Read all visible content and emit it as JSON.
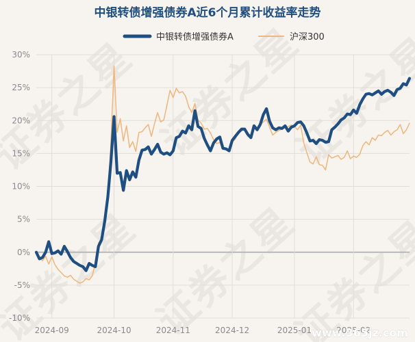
{
  "watermark": {
    "text": "证券之星",
    "url": "www.365jz.com"
  },
  "chart_data": {
    "type": "line",
    "title": "中银转债增强债券A近6个月累计收益率走势",
    "xlabel": "",
    "ylabel": "",
    "ylim": [
      -10,
      30
    ],
    "y_ticks": [
      -10,
      -5,
      0,
      5,
      10,
      15,
      20,
      25,
      30
    ],
    "y_tick_labels": [
      "-10%",
      "-5%",
      "0%",
      "5%",
      "10%",
      "15%",
      "20%",
      "25%",
      "30%"
    ],
    "x_tick_labels": [
      {
        "label": "2024-09",
        "x": 5
      },
      {
        "label": "2024-10",
        "x": 25
      },
      {
        "label": "2024-11",
        "x": 44
      },
      {
        "label": "2024-12",
        "x": 63
      },
      {
        "label": "2025-01",
        "x": 83
      },
      {
        "label": "2025-02",
        "x": 102
      }
    ],
    "legend_position": "top-center",
    "grid": true,
    "series": [
      {
        "name": "中银转债增强债券A",
        "color": "#1f4f82",
        "points": [
          [
            0,
            0.0
          ],
          [
            1,
            -1.0
          ],
          [
            2,
            -0.8
          ],
          [
            3,
            0.0
          ],
          [
            4,
            1.6
          ],
          [
            5,
            -0.2
          ],
          [
            6,
            -0.1
          ],
          [
            7,
            0.2
          ],
          [
            8,
            -0.3
          ],
          [
            9,
            0.9
          ],
          [
            10,
            0.1
          ],
          [
            11,
            -0.8
          ],
          [
            12,
            -1.4
          ],
          [
            13,
            -1.7
          ],
          [
            14,
            -2.0
          ],
          [
            15,
            -2.2
          ],
          [
            16,
            -2.8
          ],
          [
            17,
            -1.7
          ],
          [
            18,
            -2.0
          ],
          [
            19,
            -2.2
          ],
          [
            20,
            0.9
          ],
          [
            21,
            1.9
          ],
          [
            22,
            4.7
          ],
          [
            23,
            8.4
          ],
          [
            24,
            13.8
          ],
          [
            25,
            20.6
          ],
          [
            26,
            12.0
          ],
          [
            27,
            12.1
          ],
          [
            28,
            9.4
          ],
          [
            29,
            12.4
          ],
          [
            30,
            11.0
          ],
          [
            31,
            12.2
          ],
          [
            32,
            11.4
          ],
          [
            33,
            14.0
          ],
          [
            34,
            15.5
          ],
          [
            35,
            15.6
          ],
          [
            36,
            16.0
          ],
          [
            37,
            14.9
          ],
          [
            38,
            15.6
          ],
          [
            39,
            16.4
          ],
          [
            40,
            15.2
          ],
          [
            41,
            14.9
          ],
          [
            42,
            15.1
          ],
          [
            43,
            14.8
          ],
          [
            44,
            15.4
          ],
          [
            45,
            17.4
          ],
          [
            46,
            17.6
          ],
          [
            47,
            18.4
          ],
          [
            48,
            18.1
          ],
          [
            49,
            19.2
          ],
          [
            50,
            18.6
          ],
          [
            51,
            21.5
          ],
          [
            52,
            19.1
          ],
          [
            53,
            18.8
          ],
          [
            54,
            17.3
          ],
          [
            55,
            16.3
          ],
          [
            56,
            15.4
          ],
          [
            57,
            16.6
          ],
          [
            58,
            17.2
          ],
          [
            59,
            17.5
          ],
          [
            60,
            15.8
          ],
          [
            61,
            15.7
          ],
          [
            62,
            15.4
          ],
          [
            63,
            17.0
          ],
          [
            64,
            17.6
          ],
          [
            65,
            18.2
          ],
          [
            66,
            18.7
          ],
          [
            67,
            18.7
          ],
          [
            68,
            17.9
          ],
          [
            69,
            17.4
          ],
          [
            70,
            19.2
          ],
          [
            71,
            18.6
          ],
          [
            72,
            19.4
          ],
          [
            73,
            20.9
          ],
          [
            74,
            21.8
          ],
          [
            75,
            19.9
          ],
          [
            76,
            18.9
          ],
          [
            77,
            18.6
          ],
          [
            78,
            18.9
          ],
          [
            79,
            18.8
          ],
          [
            80,
            19.2
          ],
          [
            81,
            18.4
          ],
          [
            82,
            19.0
          ],
          [
            83,
            19.2
          ],
          [
            84,
            19.7
          ],
          [
            85,
            19.8
          ],
          [
            86,
            19.2
          ],
          [
            87,
            18.1
          ],
          [
            88,
            16.9
          ],
          [
            89,
            17.0
          ],
          [
            90,
            16.5
          ],
          [
            91,
            17.1
          ],
          [
            92,
            17.0
          ],
          [
            93,
            16.7
          ],
          [
            94,
            16.8
          ],
          [
            95,
            18.6
          ],
          [
            96,
            19.0
          ],
          [
            97,
            19.5
          ],
          [
            98,
            20.1
          ],
          [
            99,
            20.4
          ],
          [
            100,
            21.0
          ],
          [
            101,
            20.9
          ],
          [
            102,
            21.6
          ],
          [
            103,
            21.1
          ],
          [
            104,
            22.4
          ],
          [
            105,
            23.3
          ],
          [
            106,
            24.0
          ],
          [
            107,
            24.1
          ],
          [
            108,
            23.9
          ],
          [
            109,
            24.2
          ],
          [
            110,
            24.5
          ],
          [
            111,
            24.0
          ],
          [
            112,
            24.4
          ],
          [
            113,
            24.6
          ],
          [
            114,
            24.3
          ],
          [
            115,
            23.8
          ],
          [
            116,
            24.7
          ],
          [
            117,
            24.9
          ],
          [
            118,
            25.6
          ],
          [
            119,
            25.4
          ],
          [
            120,
            26.4
          ]
        ]
      },
      {
        "name": "沪深300",
        "color": "#f2b57a",
        "points": [
          [
            0,
            0.0
          ],
          [
            1,
            -0.8
          ],
          [
            2,
            -1.3
          ],
          [
            3,
            -0.6
          ],
          [
            4,
            -1.8
          ],
          [
            5,
            -0.7
          ],
          [
            6,
            -1.9
          ],
          [
            7,
            -2.6
          ],
          [
            8,
            -3.1
          ],
          [
            9,
            -3.6
          ],
          [
            10,
            -3.8
          ],
          [
            11,
            -3.5
          ],
          [
            12,
            -4.1
          ],
          [
            13,
            -4.4
          ],
          [
            14,
            -4.7
          ],
          [
            15,
            -4.5
          ],
          [
            16,
            -4.0
          ],
          [
            17,
            -4.2
          ],
          [
            18,
            -3.6
          ],
          [
            19,
            -1.6
          ],
          [
            20,
            1.4
          ],
          [
            21,
            2.0
          ],
          [
            22,
            4.8
          ],
          [
            23,
            8.7
          ],
          [
            24,
            16.6
          ],
          [
            25,
            28.3
          ],
          [
            26,
            18.2
          ],
          [
            27,
            20.3
          ],
          [
            28,
            16.9
          ],
          [
            29,
            19.2
          ],
          [
            30,
            15.9
          ],
          [
            31,
            16.8
          ],
          [
            32,
            15.3
          ],
          [
            33,
            18.2
          ],
          [
            34,
            18.3
          ],
          [
            35,
            18.9
          ],
          [
            36,
            19.4
          ],
          [
            37,
            17.6
          ],
          [
            38,
            19.5
          ],
          [
            39,
            21.2
          ],
          [
            40,
            19.8
          ],
          [
            41,
            20.1
          ],
          [
            42,
            22.3
          ],
          [
            43,
            24.6
          ],
          [
            44,
            23.5
          ],
          [
            45,
            24.9
          ],
          [
            46,
            24.2
          ],
          [
            47,
            24.4
          ],
          [
            48,
            23.7
          ],
          [
            49,
            22.1
          ],
          [
            50,
            21.2
          ],
          [
            51,
            22.6
          ],
          [
            52,
            20.1
          ],
          [
            53,
            19.6
          ],
          [
            54,
            18.7
          ],
          [
            55,
            18.8
          ],
          [
            56,
            18.1
          ],
          [
            57,
            17.1
          ],
          [
            58,
            16.5
          ],
          [
            59,
            16.7
          ],
          [
            60,
            15.6
          ],
          [
            61,
            15.8
          ],
          [
            62,
            15.5
          ],
          [
            63,
            16.7
          ],
          [
            64,
            17.2
          ],
          [
            65,
            18.3
          ],
          [
            66,
            18.4
          ],
          [
            67,
            18.7
          ],
          [
            68,
            17.6
          ],
          [
            69,
            17.9
          ],
          [
            70,
            19.2
          ],
          [
            71,
            18.8
          ],
          [
            72,
            19.3
          ],
          [
            73,
            19.8
          ],
          [
            74,
            20.2
          ],
          [
            75,
            19.0
          ],
          [
            76,
            17.8
          ],
          [
            77,
            18.2
          ],
          [
            78,
            18.5
          ],
          [
            79,
            18.7
          ],
          [
            80,
            18.9
          ],
          [
            81,
            19.1
          ],
          [
            82,
            19.3
          ],
          [
            83,
            19.1
          ],
          [
            84,
            18.6
          ],
          [
            85,
            19.3
          ],
          [
            86,
            16.6
          ],
          [
            87,
            15.1
          ],
          [
            88,
            13.7
          ],
          [
            89,
            13.4
          ],
          [
            90,
            14.5
          ],
          [
            91,
            13.3
          ],
          [
            92,
            13.2
          ],
          [
            93,
            12.5
          ],
          [
            94,
            14.8
          ],
          [
            95,
            14.3
          ],
          [
            96,
            14.5
          ],
          [
            97,
            14.7
          ],
          [
            98,
            14.1
          ],
          [
            99,
            14.4
          ],
          [
            100,
            15.4
          ],
          [
            101,
            14.2
          ],
          [
            102,
            14.6
          ],
          [
            103,
            14.4
          ],
          [
            104,
            14.9
          ],
          [
            105,
            16.2
          ],
          [
            106,
            16.8
          ],
          [
            107,
            16.3
          ],
          [
            108,
            17.4
          ],
          [
            109,
            17.0
          ],
          [
            110,
            17.8
          ],
          [
            111,
            17.7
          ],
          [
            112,
            18.2
          ],
          [
            113,
            18.5
          ],
          [
            114,
            17.8
          ],
          [
            115,
            18.3
          ],
          [
            116,
            18.6
          ],
          [
            117,
            19.4
          ],
          [
            118,
            18.0
          ],
          [
            119,
            18.6
          ],
          [
            120,
            19.6
          ]
        ]
      }
    ]
  }
}
